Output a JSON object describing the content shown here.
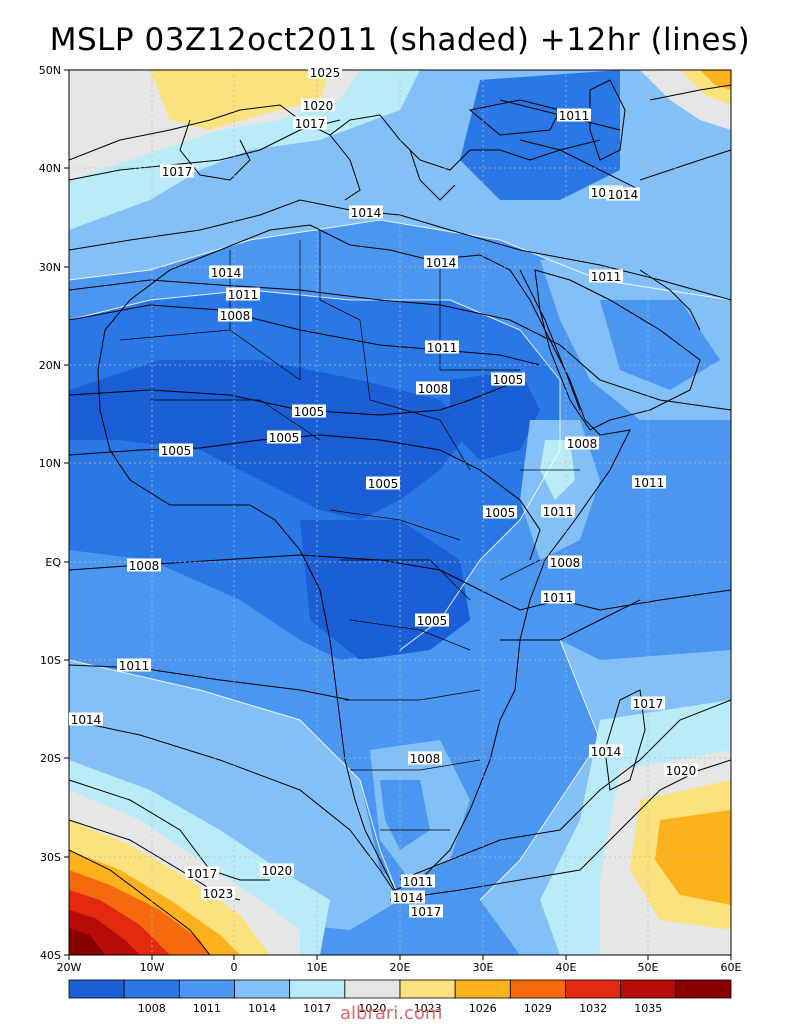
{
  "title": "MSLP 03Z12oct2011 (shaded) +12hr (lines)",
  "lat_labels": [
    "50N",
    "40N",
    "30N",
    "20N",
    "10N",
    "EQ",
    "10S",
    "20S",
    "30S",
    "40S"
  ],
  "lon_labels": [
    "20W",
    "10W",
    "0",
    "10E",
    "20E",
    "30E",
    "40E",
    "50E",
    "60E"
  ],
  "colorbar": {
    "colors": [
      "#1a5fd6",
      "#2a78e6",
      "#4a96f0",
      "#82c0f7",
      "#b9ecf8",
      "#e6e6e6",
      "#fbe27d",
      "#fbb21c",
      "#f66a0e",
      "#e32a10",
      "#b80c08",
      "#8a0000"
    ],
    "labels": [
      "1008",
      "1011",
      "1014",
      "1017",
      "1020",
      "1023",
      "1026",
      "1029",
      "1032",
      "1035"
    ]
  },
  "contour_labels": [
    {
      "text": "1025"
    },
    {
      "text": "1020"
    },
    {
      "text": "1017"
    },
    {
      "text": "1011"
    },
    {
      "text": "1017"
    },
    {
      "text": "1014"
    },
    {
      "text": "1011"
    },
    {
      "text": "1014"
    },
    {
      "text": "1014"
    },
    {
      "text": "1014"
    },
    {
      "text": "1011"
    },
    {
      "text": "1011"
    },
    {
      "text": "1008"
    },
    {
      "text": "1011"
    },
    {
      "text": "1005"
    },
    {
      "text": "1008"
    },
    {
      "text": "1005"
    },
    {
      "text": "1005"
    },
    {
      "text": "1005"
    },
    {
      "text": "1008"
    },
    {
      "text": "1005"
    },
    {
      "text": "1005"
    },
    {
      "text": "1011"
    },
    {
      "text": "1011"
    },
    {
      "text": "1008"
    },
    {
      "text": "1008"
    },
    {
      "text": "1011"
    },
    {
      "text": "1005"
    },
    {
      "text": "1011"
    },
    {
      "text": "1014"
    },
    {
      "text": "1017"
    },
    {
      "text": "1014"
    },
    {
      "text": "1008"
    },
    {
      "text": "1020"
    },
    {
      "text": "1017"
    },
    {
      "text": "1020"
    },
    {
      "text": "1023"
    },
    {
      "text": "1011"
    },
    {
      "text": "1014"
    },
    {
      "text": "1017"
    }
  ],
  "watermark": "albrari.com"
}
